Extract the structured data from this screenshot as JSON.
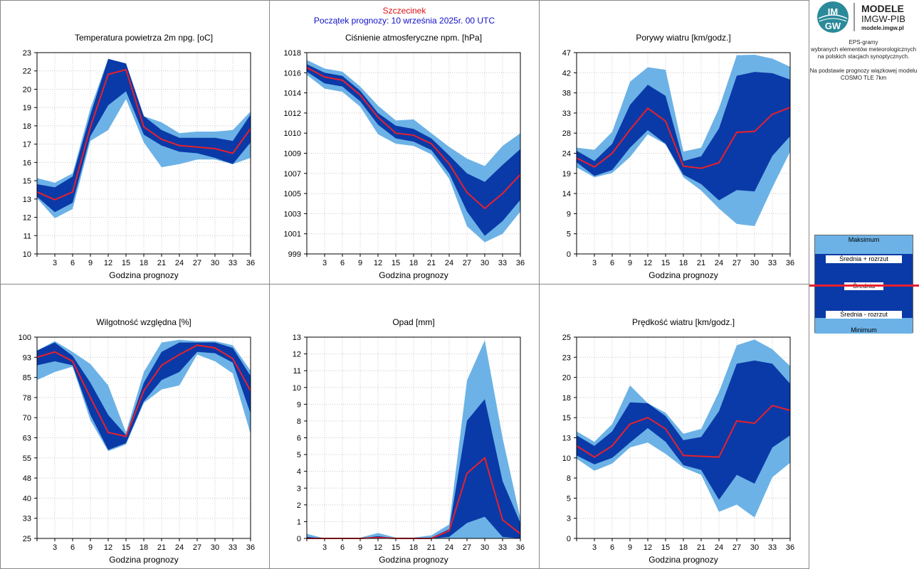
{
  "header": {
    "station": "Szczecinek",
    "forecast_start": "Początek prognozy: 10 września 2025r. 00 UTC"
  },
  "logo": {
    "mark": "IMGW",
    "line1": "MODELE",
    "line2": "IMGW-PIB",
    "line3": "modele.imgw.pl"
  },
  "side_text": {
    "line1": "EPS-gramy",
    "line2": "wybranych elementów meteorologicznych",
    "line3": "na polskich stacjach  synoptycznych.",
    "line4": "Na podstawie prognozy wiązkowej modelu",
    "line5": "COSMO TLE 7km"
  },
  "legend": {
    "max": "Maksimum",
    "mean_plus": "Średnia + rozrzut",
    "mean": "Średnia",
    "mean_minus": "Średnia - rozrzut",
    "min": "Minimum"
  },
  "colors": {
    "outer_band": "#6cb2e6",
    "inner_band": "#0a3aa8",
    "mean_line": "#e8202c",
    "header_station": "#e01010",
    "header_start": "#1010c8"
  },
  "chart_data": [
    {
      "type": "area",
      "title": "Temperatura powietrza 2m npg. [oC]",
      "xlabel": "Godzina prognozy",
      "x": [
        0,
        3,
        6,
        9,
        12,
        15,
        18,
        21,
        24,
        27,
        30,
        33,
        36
      ],
      "xticks": [
        "3",
        "6",
        "9",
        "12",
        "15",
        "18",
        "21",
        "24",
        "27",
        "30",
        "33",
        "36"
      ],
      "yticks": [
        "10",
        "11",
        "12",
        "13",
        "15",
        "16",
        "17",
        "18",
        "19",
        "20",
        "22",
        "23"
      ],
      "ylim": [
        10,
        23
      ],
      "series": [
        {
          "name": "Maksimum",
          "values": [
            14.9,
            14.6,
            15.2,
            19.4,
            22.6,
            22.3,
            18.9,
            18.5,
            17.8,
            17.9,
            17.9,
            18.0,
            19.2
          ]
        },
        {
          "name": "Średnia + rozrzut",
          "values": [
            14.5,
            14.3,
            15.0,
            19.0,
            22.6,
            22.3,
            18.9,
            18.0,
            17.5,
            17.5,
            17.5,
            17.3,
            19.0
          ]
        },
        {
          "name": "Średnia",
          "values": [
            14.0,
            13.5,
            14.0,
            18.2,
            21.6,
            21.9,
            18.2,
            17.4,
            17.0,
            16.9,
            16.8,
            16.5,
            18.1
          ]
        },
        {
          "name": "Średnia - rozrzut",
          "values": [
            13.7,
            12.7,
            13.3,
            17.6,
            19.6,
            20.5,
            17.7,
            17.0,
            16.6,
            16.5,
            16.2,
            15.8,
            17.2
          ]
        },
        {
          "name": "Minimum",
          "values": [
            13.6,
            12.3,
            12.9,
            17.3,
            18.0,
            20.0,
            17.2,
            15.6,
            15.8,
            16.1,
            16.1,
            15.8,
            16.2
          ]
        }
      ]
    },
    {
      "type": "area",
      "title": "Ciśnienie atmosferyczne npm. [hPa]",
      "xlabel": "Godzina prognozy",
      "x": [
        0,
        3,
        6,
        9,
        12,
        15,
        18,
        21,
        24,
        27,
        30,
        33,
        36
      ],
      "xticks": [
        "3",
        "6",
        "9",
        "12",
        "15",
        "18",
        "21",
        "24",
        "27",
        "30",
        "33",
        "36"
      ],
      "yticks": [
        "999",
        "1001",
        "1003",
        "1005",
        "1007",
        "1009",
        "1010",
        "1012",
        "1014",
        "1016",
        "1018"
      ],
      "ylim": [
        999,
        1018
      ],
      "series": [
        {
          "name": "Maksimum",
          "values": [
            1017.3,
            1016.5,
            1016.2,
            1014.8,
            1013.0,
            1011.6,
            1011.7,
            1010.4,
            1009.1,
            1008.0,
            1007.3,
            1009.2,
            1010.4
          ]
        },
        {
          "name": "Średnia + rozrzut",
          "values": [
            1016.9,
            1016.1,
            1015.8,
            1014.4,
            1012.3,
            1011.1,
            1010.8,
            1009.9,
            1008.3,
            1006.6,
            1005.8,
            1007.4,
            1008.9
          ]
        },
        {
          "name": "Średnia",
          "values": [
            1016.6,
            1015.7,
            1015.4,
            1014.0,
            1011.9,
            1010.4,
            1010.2,
            1009.4,
            1007.5,
            1004.8,
            1003.3,
            1004.7,
            1006.5
          ]
        },
        {
          "name": "Średnia - rozrzut",
          "values": [
            1016.2,
            1015.1,
            1014.8,
            1013.4,
            1011.2,
            1009.9,
            1009.6,
            1008.8,
            1006.6,
            1003.0,
            1000.7,
            1002.1,
            1004.1
          ]
        },
        {
          "name": "Minimum",
          "values": [
            1015.9,
            1014.6,
            1014.3,
            1012.9,
            1010.3,
            1009.4,
            1009.2,
            1008.4,
            1006.1,
            1001.6,
            1000.1,
            1000.9,
            1003.0
          ]
        }
      ]
    },
    {
      "type": "area",
      "title": "Porywy wiatru [km/godz.]",
      "xlabel": "Godzina prognozy",
      "x": [
        0,
        3,
        6,
        9,
        12,
        15,
        18,
        21,
        24,
        27,
        30,
        33,
        36
      ],
      "xticks": [
        "3",
        "6",
        "9",
        "12",
        "15",
        "18",
        "21",
        "24",
        "27",
        "30",
        "33",
        "36"
      ],
      "yticks": [
        "0",
        "5",
        "9",
        "14",
        "19",
        "24",
        "28",
        "33",
        "38",
        "42",
        "47"
      ],
      "ylim": [
        0,
        47
      ],
      "series": [
        {
          "name": "Maksimum",
          "values": [
            24.8,
            24.3,
            28.5,
            40.2,
            43.6,
            43.0,
            23.9,
            24.8,
            34.0,
            46.4,
            46.5,
            45.6,
            43.7
          ]
        },
        {
          "name": "Średnia + rozrzut",
          "values": [
            24.1,
            21.7,
            25.7,
            34.8,
            39.5,
            36.9,
            21.7,
            22.8,
            29.3,
            41.6,
            42.5,
            42.2,
            40.7
          ]
        },
        {
          "name": "Średnia",
          "values": [
            22.4,
            20.3,
            23.5,
            29.0,
            34.0,
            31.0,
            20.5,
            20.0,
            21.3,
            28.4,
            28.6,
            32.6,
            34.2
          ]
        },
        {
          "name": "Średnia - rozrzut",
          "values": [
            21.4,
            18.2,
            19.6,
            24.8,
            28.9,
            25.7,
            18.5,
            16.3,
            12.5,
            14.9,
            14.6,
            22.9,
            27.5
          ]
        },
        {
          "name": "Minimum",
          "values": [
            20.2,
            17.9,
            18.9,
            22.6,
            27.9,
            25.6,
            17.9,
            14.8,
            10.6,
            7.0,
            6.5,
            15.5,
            23.9
          ]
        }
      ]
    },
    {
      "type": "area",
      "title": "Wilgotność względna [%]",
      "xlabel": "Godzina prognozy",
      "x": [
        0,
        3,
        6,
        9,
        12,
        15,
        18,
        21,
        24,
        27,
        30,
        33,
        36
      ],
      "xticks": [
        "3",
        "6",
        "9",
        "12",
        "15",
        "18",
        "21",
        "24",
        "27",
        "30",
        "33",
        "36"
      ],
      "yticks": [
        "25",
        "33",
        "40",
        "48",
        "55",
        "63",
        "70",
        "78",
        "85",
        "93",
        "100"
      ],
      "ylim": [
        25,
        100
      ],
      "series": [
        {
          "name": "Maksimum",
          "values": [
            95.0,
            98.5,
            94.5,
            90.0,
            82.0,
            64.5,
            87.0,
            98.0,
            99.0,
            98.5,
            98.5,
            97.0,
            87.5
          ]
        },
        {
          "name": "Średnia + rozrzut",
          "values": [
            95.0,
            98.0,
            93.0,
            83.0,
            71.0,
            63.5,
            83.0,
            94.5,
            98.0,
            98.0,
            98.0,
            96.0,
            85.5
          ]
        },
        {
          "name": "Średnia",
          "values": [
            92.5,
            94.5,
            91.0,
            77.5,
            64.5,
            63.0,
            80.0,
            89.5,
            93.5,
            97.0,
            96.0,
            92.0,
            80.0
          ]
        },
        {
          "name": "Średnia - rozrzut",
          "values": [
            89.5,
            91.0,
            89.5,
            71.0,
            58.0,
            60.5,
            76.0,
            84.0,
            87.0,
            94.5,
            94.0,
            90.5,
            71.5
          ]
        },
        {
          "name": "Minimum",
          "values": [
            84.0,
            87.0,
            89.0,
            69.0,
            57.5,
            60.0,
            75.5,
            80.5,
            82.0,
            93.5,
            91.0,
            86.5,
            64.0
          ]
        }
      ]
    },
    {
      "type": "area",
      "title": "Opad [mm]",
      "xlabel": "Godzina prognozy",
      "x": [
        0,
        3,
        6,
        9,
        12,
        15,
        18,
        21,
        24,
        27,
        30,
        33,
        36
      ],
      "xticks": [
        "3",
        "6",
        "9",
        "12",
        "15",
        "18",
        "21",
        "24",
        "27",
        "30",
        "33",
        "36"
      ],
      "yticks": [
        "0",
        "1",
        "2",
        "3",
        "4",
        "5",
        "6",
        "8",
        "9",
        "10",
        "11",
        "12",
        "13"
      ],
      "ylim": [
        0,
        13
      ],
      "series": [
        {
          "name": "Maksimum",
          "values": [
            0.3,
            0.0,
            0.0,
            0.05,
            0.35,
            0.05,
            0.05,
            0.2,
            0.9,
            10.2,
            12.8,
            6.5,
            1.3
          ]
        },
        {
          "name": "Średnia + rozrzut",
          "values": [
            0.1,
            0.0,
            0.0,
            0.0,
            0.15,
            0.0,
            0.0,
            0.05,
            0.6,
            7.6,
            9.0,
            3.7,
            1.0
          ]
        },
        {
          "name": "Średnia",
          "values": [
            0.0,
            0.0,
            0.0,
            0.0,
            0.05,
            0.0,
            0.0,
            0.0,
            0.5,
            4.2,
            5.2,
            1.2,
            0.3
          ]
        },
        {
          "name": "Średnia - rozrzut",
          "values": [
            0.0,
            0.0,
            0.0,
            0.0,
            0.0,
            0.0,
            0.0,
            0.0,
            0.1,
            1.0,
            1.4,
            0.1,
            0.0
          ]
        },
        {
          "name": "Minimum",
          "values": [
            0.0,
            0.0,
            0.0,
            0.0,
            0.0,
            0.0,
            0.0,
            0.0,
            0.0,
            0.0,
            0.0,
            0.0,
            0.0
          ]
        }
      ]
    },
    {
      "type": "area",
      "title": "Prędkość wiatru [km/godz.]",
      "xlabel": "Godzina prognozy",
      "x": [
        0,
        3,
        6,
        9,
        12,
        15,
        18,
        21,
        24,
        27,
        30,
        33,
        36
      ],
      "xticks": [
        "3",
        "6",
        "9",
        "12",
        "15",
        "18",
        "21",
        "24",
        "27",
        "30",
        "33",
        "36"
      ],
      "yticks": [
        "0",
        "3",
        "5",
        "8",
        "10",
        "13",
        "15",
        "18",
        "20",
        "23",
        "25"
      ],
      "ylim": [
        0,
        25
      ],
      "series": [
        {
          "name": "Maksimum",
          "values": [
            13.3,
            12.0,
            14.2,
            19.0,
            16.8,
            15.6,
            13.0,
            13.6,
            18.2,
            24.0,
            24.7,
            23.5,
            21.4
          ]
        },
        {
          "name": "Średnia + rozrzut",
          "values": [
            12.8,
            11.5,
            13.3,
            16.9,
            16.8,
            15.2,
            12.2,
            12.6,
            15.8,
            21.7,
            22.1,
            21.7,
            19.2
          ]
        },
        {
          "name": "Średnia",
          "values": [
            11.5,
            10.1,
            11.5,
            14.2,
            15.0,
            13.6,
            10.3,
            10.2,
            10.1,
            14.6,
            14.3,
            16.5,
            15.9
          ]
        },
        {
          "name": "Średnia - rozrzut",
          "values": [
            10.3,
            9.2,
            10.0,
            11.9,
            13.7,
            12.0,
            9.1,
            8.5,
            4.8,
            7.9,
            6.8,
            11.3,
            12.8
          ]
        },
        {
          "name": "Minimum",
          "values": [
            9.9,
            8.4,
            9.3,
            11.3,
            11.9,
            10.5,
            8.8,
            7.9,
            3.3,
            4.2,
            2.6,
            7.6,
            9.4
          ]
        }
      ]
    }
  ]
}
